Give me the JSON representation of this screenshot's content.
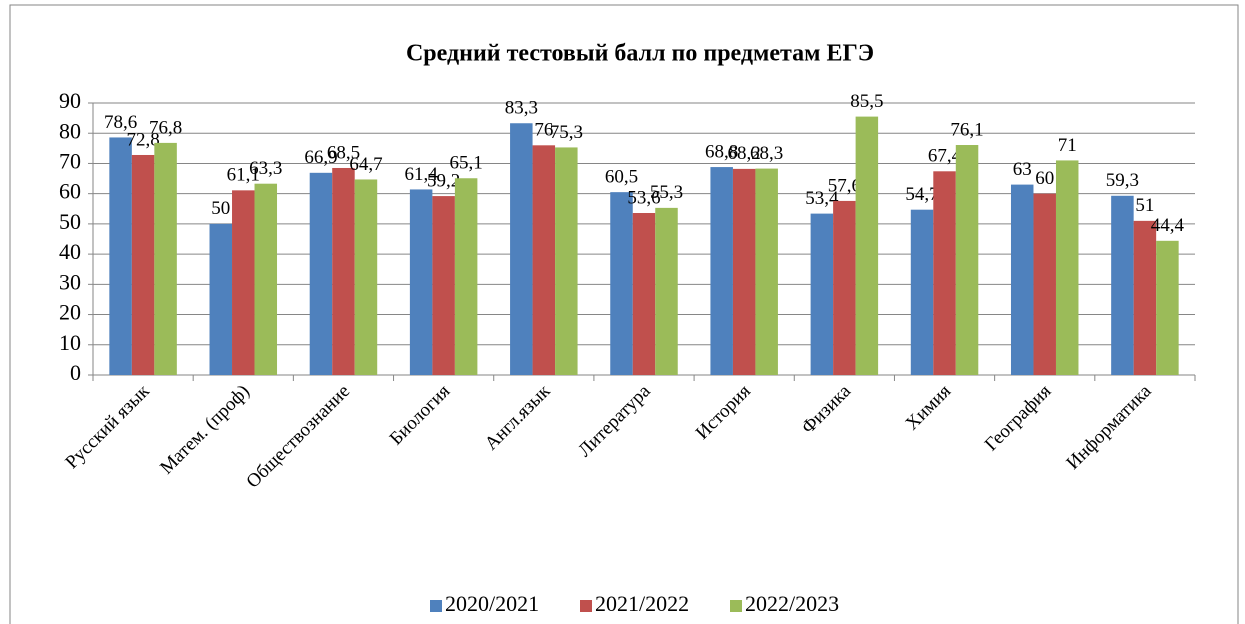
{
  "chart_data": {
    "type": "bar",
    "title": "Средний тестовый балл по предметам ЕГЭ",
    "categories": [
      "Русский язык",
      "Матем. (проф)",
      "Обществознание",
      "Биология",
      "Англ.язык",
      "Литература",
      "История",
      "Физика",
      "Химия",
      "География",
      "Информатика"
    ],
    "series": [
      {
        "name": "2020/2021",
        "color": "#4f81bd",
        "values": [
          78.6,
          50,
          66.9,
          61.4,
          83.3,
          60.5,
          68.8,
          53.4,
          54.7,
          63,
          59.3
        ],
        "value_labels": [
          "78,6",
          "50",
          "66,9",
          "61,4",
          "83,3",
          "60,5",
          "68,8",
          "53,4",
          "54,7",
          "63",
          "59,3"
        ]
      },
      {
        "name": "2021/2022",
        "color": "#c0504d",
        "values": [
          72.8,
          61.1,
          68.5,
          59.2,
          76,
          53.6,
          68.2,
          57.6,
          67.4,
          60,
          51
        ],
        "value_labels": [
          "72,8",
          "61,1",
          "68,5",
          "59,2",
          "76",
          "53,6",
          "68,2",
          "57,6",
          "67,4",
          "60",
          "51"
        ]
      },
      {
        "name": "2022/2023",
        "color": "#9bbb59",
        "values": [
          76.8,
          63.3,
          64.7,
          65.1,
          75.3,
          55.3,
          68.3,
          85.5,
          76.1,
          71,
          44.4
        ],
        "value_labels": [
          "76,8",
          "63,3",
          "64,7",
          "65,1",
          "75,3",
          "55,3",
          "68,3",
          "85,5",
          "76,1",
          "71",
          "44,4"
        ]
      }
    ],
    "ylim": [
      0,
      90
    ],
    "yticks": [
      0,
      10,
      20,
      30,
      40,
      50,
      60,
      70,
      80,
      90
    ],
    "grid": true,
    "legend": "bottom"
  }
}
